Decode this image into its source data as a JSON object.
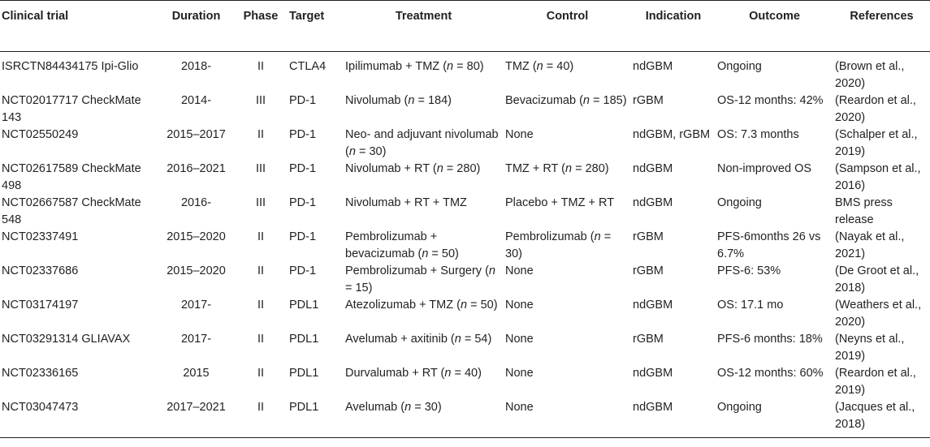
{
  "headers": [
    "Clinical trial",
    "Duration",
    "Phase",
    "Target",
    "Treatment",
    "Control",
    "Indication",
    "Outcome",
    "References"
  ],
  "rows": [
    {
      "trial": "ISRCTN84434175 Ipi-Glio",
      "duration": "2018-",
      "phase": "II",
      "target": "CTLA4",
      "treatment": "Ipilimumab + TMZ (n = 80)",
      "control": "TMZ (n = 40)",
      "indication": "ndGBM",
      "outcome": "Ongoing",
      "references": "(Brown et al., 2020)"
    },
    {
      "trial": "NCT02017717 CheckMate 143",
      "duration": "2014-",
      "phase": "III",
      "target": "PD-1",
      "treatment": "Nivolumab (n = 184)",
      "control": "Bevacizumab (n = 185)",
      "indication": "rGBM",
      "outcome": "OS-12 months: 42%",
      "references": "(Reardon et al., 2020)"
    },
    {
      "trial": "NCT02550249",
      "duration": "2015–2017",
      "phase": "II",
      "target": "PD-1",
      "treatment": "Neo- and adjuvant nivolumab (n = 30)",
      "control": "None",
      "indication": "ndGBM, rGBM",
      "outcome": "OS: 7.3 months",
      "references": "(Schalper et al., 2019)"
    },
    {
      "trial": "NCT02617589 CheckMate 498",
      "duration": "2016–2021",
      "phase": "III",
      "target": "PD-1",
      "treatment": "Nivolumab + RT (n = 280)",
      "control": "TMZ + RT (n = 280)",
      "indication": "ndGBM",
      "outcome": "Non-improved OS",
      "references": "(Sampson et al., 2016)"
    },
    {
      "trial": "NCT02667587 CheckMate 548",
      "duration": "2016-",
      "phase": "III",
      "target": "PD-1",
      "treatment": "Nivolumab + RT + TMZ",
      "control": "Placebo + TMZ + RT",
      "indication": "ndGBM",
      "outcome": "Ongoing",
      "references": "BMS press release"
    },
    {
      "trial": "NCT02337491",
      "duration": "2015–2020",
      "phase": "II",
      "target": "PD-1",
      "treatment": "Pembrolizumab + bevacizumab (n = 50)",
      "control": "Pembrolizumab (n = 30)",
      "indication": "rGBM",
      "outcome": "PFS-6months 26 vs 6.7%",
      "references": "(Nayak et al., 2021)"
    },
    {
      "trial": "NCT02337686",
      "duration": "2015–2020",
      "phase": "II",
      "target": "PD-1",
      "treatment": "Pembrolizumab + Surgery (n = 15)",
      "control": "None",
      "indication": "rGBM",
      "outcome": "PFS-6: 53%",
      "references": "(De Groot et al., 2018)"
    },
    {
      "trial": "NCT03174197",
      "duration": "2017-",
      "phase": "II",
      "target": "PDL1",
      "treatment": "Atezolizumab + TMZ (n = 50)",
      "control": "None",
      "indication": "ndGBM",
      "outcome": "OS: 17.1 mo",
      "references": "(Weathers et al., 2020)"
    },
    {
      "trial": "NCT03291314 GLIAVAX",
      "duration": "2017-",
      "phase": "II",
      "target": "PDL1",
      "treatment": "Avelumab + axitinib (n = 54)",
      "control": "None",
      "indication": "rGBM",
      "outcome": "PFS-6 months: 18%",
      "references": "(Neyns et al., 2019)"
    },
    {
      "trial": "NCT02336165",
      "duration": "2015",
      "phase": "II",
      "target": "PDL1",
      "treatment": "Durvalumab + RT (n = 40)",
      "control": "None",
      "indication": "ndGBM",
      "outcome": "OS-12 months: 60%",
      "references": "(Reardon et al., 2019)"
    },
    {
      "trial": "NCT03047473",
      "duration": "2017–2021",
      "phase": "II",
      "target": "PDL1",
      "treatment": "Avelumab (n = 30)",
      "control": "None",
      "indication": "ndGBM",
      "outcome": "Ongoing",
      "references": "(Jacques et al., 2018)"
    }
  ]
}
